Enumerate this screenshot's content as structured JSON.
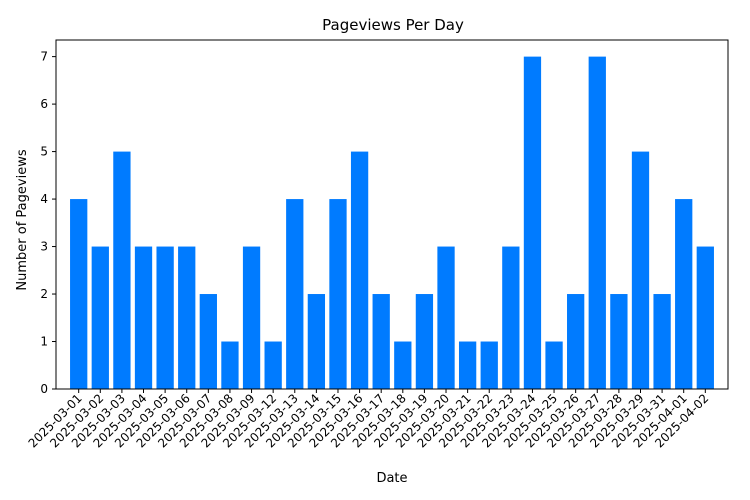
{
  "chart_data": {
    "type": "bar",
    "title": "Pageviews Per Day",
    "xlabel": "Date",
    "ylabel": "Number of Pageviews",
    "ylim": [
      0,
      7.35
    ],
    "yticks": [
      0,
      1,
      2,
      3,
      4,
      5,
      6,
      7
    ],
    "grid": false,
    "bar_color": "#007bff",
    "categories": [
      "2025-03-01",
      "2025-03-02",
      "2025-03-03",
      "2025-03-04",
      "2025-03-05",
      "2025-03-06",
      "2025-03-07",
      "2025-03-08",
      "2025-03-09",
      "2025-03-12",
      "2025-03-13",
      "2025-03-14",
      "2025-03-15",
      "2025-03-16",
      "2025-03-17",
      "2025-03-18",
      "2025-03-19",
      "2025-03-20",
      "2025-03-21",
      "2025-03-22",
      "2025-03-23",
      "2025-03-24",
      "2025-03-25",
      "2025-03-26",
      "2025-03-27",
      "2025-03-28",
      "2025-03-29",
      "2025-03-31",
      "2025-04-01",
      "2025-04-02"
    ],
    "values": [
      4,
      3,
      5,
      3,
      3,
      3,
      2,
      1,
      3,
      1,
      4,
      2,
      4,
      5,
      2,
      1,
      2,
      3,
      1,
      1,
      3,
      7,
      1,
      2,
      7,
      2,
      5,
      2,
      4,
      3
    ]
  }
}
